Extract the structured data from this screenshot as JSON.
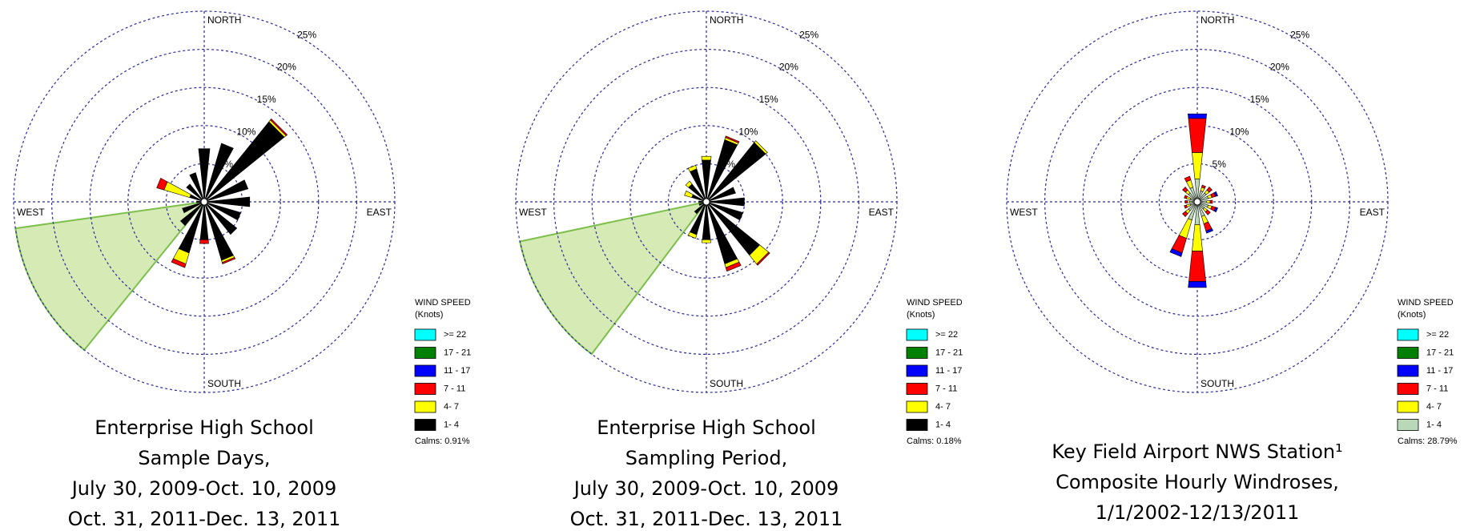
{
  "chart_data": [
    {
      "type": "windrose",
      "caption": [
        "Enterprise High School",
        "Sample Days,",
        "July 30, 2009-Oct. 10, 2009",
        "Oct. 31, 2011-Dec. 13, 2011"
      ],
      "direction_labels": [
        "NORTH",
        "EAST",
        "SOUTH",
        "WEST"
      ],
      "rlim": [
        0,
        25
      ],
      "rticks": [
        {
          "value": 5,
          "label": "5%"
        },
        {
          "value": 10,
          "label": "10%"
        },
        {
          "value": 15,
          "label": "15%"
        },
        {
          "value": 20,
          "label": "20%"
        },
        {
          "value": 25,
          "label": "25%"
        }
      ],
      "legend_title": [
        "WIND SPEED",
        "(Knots)"
      ],
      "calms": "Calms: 0.91%",
      "series": [
        {
          "name": ">= 22",
          "color": "#00ffff",
          "values": [
            0,
            0,
            0,
            0,
            0,
            0,
            0,
            0,
            0,
            0,
            0,
            0,
            0,
            0,
            0,
            0
          ]
        },
        {
          "name": "17 - 21",
          "color": "#008000",
          "values": [
            0,
            0,
            0,
            0,
            0,
            0,
            0,
            0,
            0,
            0,
            0,
            0,
            0,
            0,
            0,
            0
          ]
        },
        {
          "name": "11 - 17",
          "color": "#0000ff",
          "values": [
            0,
            0,
            0,
            0,
            0,
            0,
            0,
            0,
            0,
            0,
            0,
            0,
            0,
            0,
            0,
            0
          ]
        },
        {
          "name": "7 - 11",
          "color": "#ff0000",
          "values": [
            0,
            0,
            0.2,
            0,
            0,
            0,
            0,
            0.2,
            0.5,
            0.5,
            0,
            0,
            0,
            1,
            0,
            0
          ]
        },
        {
          "name": "4- 7",
          "color": "#ffff00",
          "values": [
            0,
            0,
            0.3,
            0,
            0,
            0,
            0,
            0.3,
            0,
            1.5,
            0,
            0,
            0,
            3.5,
            0,
            0
          ]
        },
        {
          "name": "1- 4",
          "color": "#000000",
          "values": [
            7,
            8,
            13.5,
            6,
            6,
            5,
            5.5,
            8,
            5,
            7,
            4,
            3,
            1,
            2,
            3,
            4
          ]
        }
      ]
    },
    {
      "type": "windrose",
      "caption": [
        "Enterprise High School",
        "Sampling Period,",
        "July 30, 2009-Oct. 10, 2009",
        "Oct. 31, 2011-Dec. 13, 2011"
      ],
      "direction_labels": [
        "NORTH",
        "EAST",
        "SOUTH",
        "WEST"
      ],
      "rlim": [
        0,
        25
      ],
      "rticks": [
        {
          "value": 5,
          "label": "5%"
        },
        {
          "value": 10,
          "label": "10%"
        },
        {
          "value": 15,
          "label": "15%"
        },
        {
          "value": 20,
          "label": "20%"
        },
        {
          "value": 25,
          "label": "25%"
        }
      ],
      "legend_title": [
        "WIND SPEED",
        "(Knots)"
      ],
      "calms": "Calms: 0.18%",
      "series": [
        {
          "name": ">= 22",
          "color": "#00ffff",
          "values": [
            0,
            0,
            0,
            0,
            0,
            0,
            0,
            0,
            0,
            0,
            0,
            0,
            0,
            0,
            0,
            0
          ]
        },
        {
          "name": "17 - 21",
          "color": "#008000",
          "values": [
            0,
            0,
            0,
            0,
            0,
            0,
            0,
            0,
            0,
            0,
            0,
            0,
            0,
            0,
            0,
            0
          ]
        },
        {
          "name": "11 - 17",
          "color": "#0000ff",
          "values": [
            0,
            0,
            0,
            0,
            0,
            0,
            0,
            0,
            0,
            0,
            0,
            0,
            0,
            0,
            0,
            0
          ]
        },
        {
          "name": "7 - 11",
          "color": "#ff0000",
          "values": [
            0,
            0.2,
            0,
            0,
            0,
            0,
            0.2,
            0.5,
            0,
            0,
            0,
            0,
            0,
            0,
            0,
            0
          ]
        },
        {
          "name": "4- 7",
          "color": "#ffff00",
          "values": [
            0.5,
            0.3,
            0.3,
            0,
            0,
            0,
            1.5,
            0.5,
            0.4,
            0.5,
            0,
            0,
            0,
            1,
            0.5,
            0.5
          ]
        },
        {
          "name": "1- 4",
          "color": "#000000",
          "values": [
            5.5,
            8.5,
            10,
            4,
            5,
            5,
            9,
            8.5,
            5,
            4.5,
            2,
            1,
            1,
            2,
            3,
            4.5
          ]
        }
      ]
    },
    {
      "type": "windrose",
      "caption": [
        "Key Field Airport NWS Station¹",
        "Composite Hourly Windroses,",
        "1/1/2002-12/13/2011"
      ],
      "direction_labels": [
        "NORTH",
        "EAST",
        "SOUTH",
        "WEST"
      ],
      "rlim": [
        0,
        25
      ],
      "rticks": [
        {
          "value": 5,
          "label": "5%"
        },
        {
          "value": 10,
          "label": "10%"
        },
        {
          "value": 15,
          "label": "15%"
        },
        {
          "value": 20,
          "label": "20%"
        },
        {
          "value": 25,
          "label": "25%"
        }
      ],
      "legend_title": [
        "WIND SPEED",
        "(Knots)"
      ],
      "calms": "Calms: 28.79%",
      "series": [
        {
          "name": ">= 22",
          "color": "#00ffff",
          "values": [
            0,
            0,
            0,
            0,
            0,
            0,
            0,
            0,
            0,
            0,
            0,
            0,
            0,
            0,
            0,
            0
          ]
        },
        {
          "name": "17 - 21",
          "color": "#008000",
          "values": [
            0,
            0,
            0,
            0,
            0,
            0,
            0,
            0,
            0,
            0,
            0,
            0,
            0,
            0,
            0,
            0
          ]
        },
        {
          "name": "11 - 17",
          "color": "#0000ff",
          "values": [
            0.6,
            0,
            0,
            0.3,
            0,
            0.3,
            0,
            0.3,
            0.8,
            0.5,
            0,
            0,
            0,
            0,
            0,
            0
          ]
        },
        {
          "name": "7 - 11",
          "color": "#ff0000",
          "values": [
            4.5,
            0.3,
            0.5,
            0.5,
            0.3,
            0.5,
            0.5,
            1,
            4,
            2,
            0.5,
            0.3,
            0.3,
            0.3,
            0.5,
            0.5
          ]
        },
        {
          "name": "4- 7",
          "color": "#ffff00",
          "values": [
            3.5,
            0.5,
            0.5,
            0.5,
            0.5,
            0.5,
            0.5,
            1,
            3.5,
            2.5,
            0.5,
            0.5,
            0.3,
            0.5,
            0.5,
            1
          ]
        },
        {
          "name": "1- 4",
          "color": "#b8d8b8",
          "values": [
            3,
            1.5,
            1.5,
            1.5,
            1.2,
            1.5,
            1.2,
            2,
            3,
            2.5,
            1.5,
            1,
            1,
            1,
            1.5,
            2
          ]
        }
      ]
    }
  ]
}
